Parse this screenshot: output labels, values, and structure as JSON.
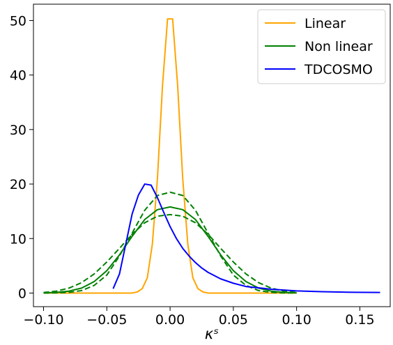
{
  "chart_data": {
    "type": "line",
    "xlabel": "κˢ",
    "ylabel": "",
    "xlim": [
      -0.108,
      0.174
    ],
    "ylim": [
      -2.5,
      53
    ],
    "xticks": [
      -0.1,
      -0.05,
      0.0,
      0.05,
      0.1,
      0.15
    ],
    "xtick_labels": [
      "−0.10",
      "−0.05",
      "0.00",
      "0.05",
      "0.10",
      "0.15"
    ],
    "yticks": [
      0,
      10,
      20,
      30,
      40,
      50
    ],
    "ytick_labels": [
      "0",
      "10",
      "20",
      "30",
      "40",
      "50"
    ],
    "grid": false,
    "legend_position": "top-right",
    "legend": [
      "Linear",
      "Non linear",
      "TDCOSMO"
    ],
    "series": [
      {
        "name": "Linear",
        "color": "#ffa500",
        "style": "solid",
        "x": [
          -0.1,
          -0.03,
          -0.026,
          -0.022,
          -0.018,
          -0.014,
          -0.01,
          -0.006,
          -0.002,
          0.0,
          0.002,
          0.006,
          0.01,
          0.014,
          0.018,
          0.022,
          0.026,
          0.03,
          0.1
        ],
        "y": [
          0,
          0,
          0.2,
          0.8,
          2.8,
          9.0,
          21.0,
          38.0,
          50.3,
          50.3,
          50.3,
          38.0,
          21.0,
          9.0,
          2.8,
          0.8,
          0.2,
          0,
          0
        ]
      },
      {
        "name": "Non linear",
        "color": "#008000",
        "style": "solid",
        "x": [
          -0.1,
          -0.09,
          -0.08,
          -0.07,
          -0.06,
          -0.05,
          -0.04,
          -0.03,
          -0.02,
          -0.01,
          0.0,
          0.01,
          0.02,
          0.03,
          0.04,
          0.05,
          0.06,
          0.07,
          0.08,
          0.09,
          0.1
        ],
        "y": [
          0.04,
          0.12,
          0.35,
          0.9,
          2.1,
          4.1,
          7.0,
          10.4,
          13.5,
          15.3,
          15.8,
          15.3,
          13.5,
          10.4,
          7.0,
          4.1,
          2.1,
          0.9,
          0.35,
          0.12,
          0.04
        ]
      },
      {
        "color": "#008000",
        "style": "dashed",
        "x": [
          -0.1,
          -0.09,
          -0.08,
          -0.07,
          -0.06,
          -0.05,
          -0.04,
          -0.03,
          -0.02,
          -0.01,
          0.0,
          0.01,
          0.02,
          0.03,
          0.04,
          0.05,
          0.06,
          0.07,
          0.08,
          0.09,
          0.1
        ],
        "y": [
          0.0,
          0.03,
          0.12,
          0.45,
          1.4,
          3.3,
          6.8,
          11.0,
          15.2,
          17.9,
          18.5,
          17.9,
          15.2,
          11.0,
          6.8,
          3.3,
          1.4,
          0.45,
          0.12,
          0.03,
          0.0
        ]
      },
      {
        "color": "#008000",
        "style": "dashed",
        "x": [
          -0.1,
          -0.09,
          -0.08,
          -0.07,
          -0.06,
          -0.05,
          -0.04,
          -0.03,
          -0.02,
          -0.01,
          0.0,
          0.01,
          0.02,
          0.03,
          0.04,
          0.05,
          0.06,
          0.07,
          0.08,
          0.09,
          0.1
        ],
        "y": [
          0.1,
          0.35,
          0.9,
          1.9,
          3.5,
          5.7,
          8.2,
          10.8,
          12.9,
          14.1,
          14.4,
          14.1,
          12.9,
          10.8,
          8.2,
          5.7,
          3.5,
          1.9,
          0.9,
          0.35,
          0.1
        ]
      },
      {
        "name": "TDCOSMO",
        "color": "#0000ff",
        "style": "solid",
        "x": [
          -0.045,
          -0.04,
          -0.035,
          -0.03,
          -0.025,
          -0.02,
          -0.015,
          -0.01,
          -0.005,
          0.0,
          0.005,
          0.01,
          0.015,
          0.02,
          0.025,
          0.03,
          0.04,
          0.05,
          0.06,
          0.08,
          0.1,
          0.12,
          0.14,
          0.166
        ],
        "y": [
          0.8,
          3.5,
          9.0,
          14.5,
          18.0,
          20.0,
          19.8,
          17.5,
          14.8,
          12.2,
          10.0,
          8.2,
          6.8,
          5.6,
          4.6,
          3.8,
          2.6,
          1.8,
          1.2,
          0.7,
          0.4,
          0.25,
          0.15,
          0.1
        ]
      }
    ]
  }
}
